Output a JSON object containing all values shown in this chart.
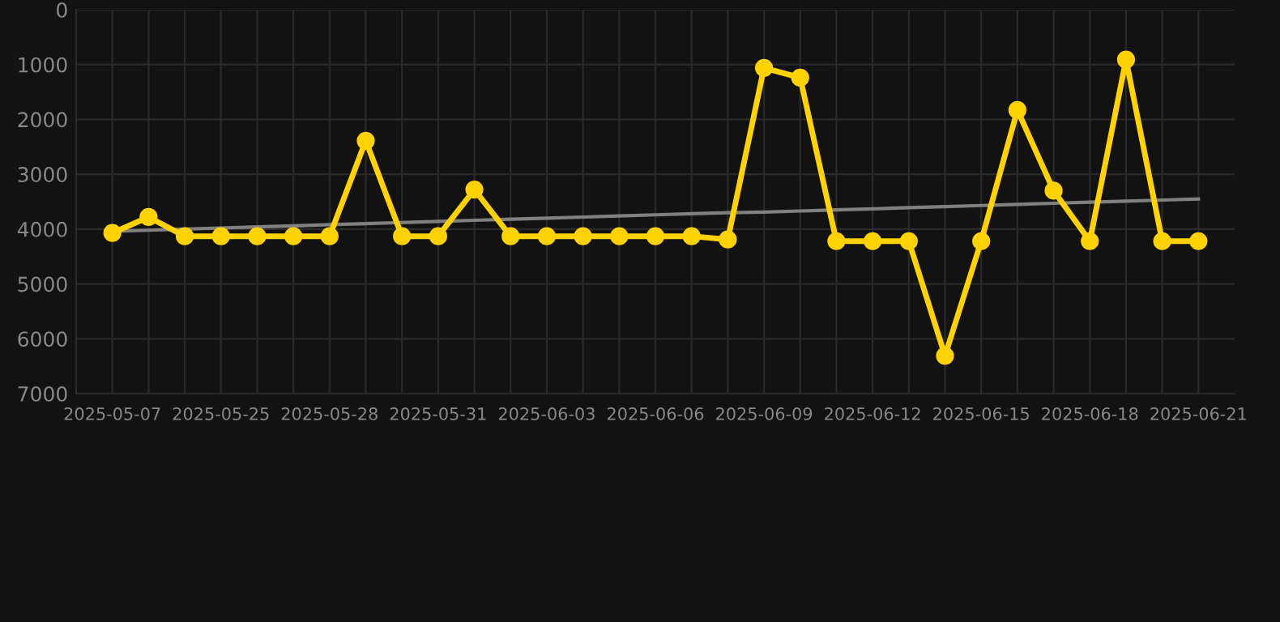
{
  "chart_data": {
    "type": "line",
    "categories": [
      "2025-05-07",
      null,
      null,
      "2025-05-25",
      null,
      null,
      "2025-05-28",
      null,
      null,
      "2025-05-31",
      null,
      null,
      "2025-06-03",
      null,
      null,
      "2025-06-06",
      null,
      null,
      "2025-06-09",
      null,
      null,
      "2025-06-12",
      null,
      null,
      "2025-06-15",
      null,
      null,
      "2025-06-18",
      null,
      null,
      "2025-06-21"
    ],
    "series": [
      {
        "color": "#ffd200",
        "values": [
          4070,
          3780,
          4130,
          4130,
          4130,
          4130,
          4130,
          2390,
          4130,
          4130,
          3280,
          4130,
          4130,
          4130,
          4130,
          4130,
          4130,
          4190,
          1060,
          1240,
          4220,
          4220,
          4220,
          6310,
          4220,
          1830,
          3300,
          4220,
          910,
          4220,
          4220
        ]
      },
      {
        "type": "line",
        "color": "#808080",
        "values": [
          4040,
          4020,
          4000,
          3980,
          3960,
          3940,
          3920,
          3900,
          3880,
          3860,
          3840,
          3820,
          3800,
          3780,
          3760,
          3740,
          3720,
          3700,
          3690,
          3670,
          3650,
          3630,
          3610,
          3590,
          3570,
          3550,
          3530,
          3510,
          3490,
          3470,
          3450
        ],
        "marker": "none"
      }
    ],
    "ylim": [
      7000,
      0
    ],
    "yticks": [
      0,
      1000,
      2000,
      3000,
      4000,
      5000,
      6000,
      7000
    ],
    "grid": true,
    "marker": "circle",
    "line_style": "solid"
  }
}
